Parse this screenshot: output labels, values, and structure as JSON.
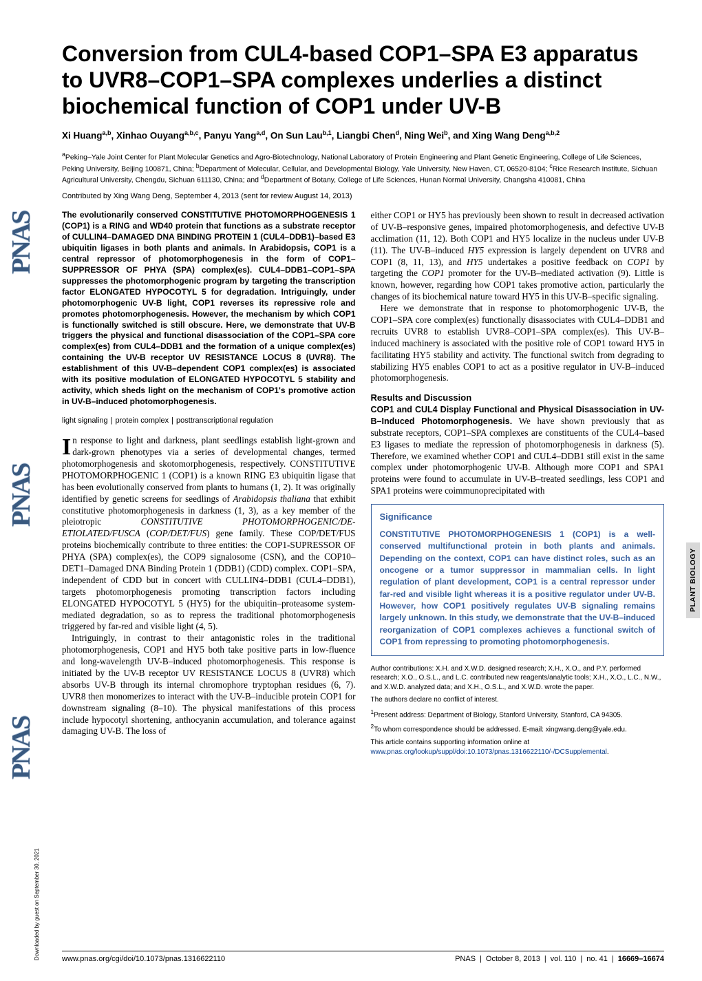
{
  "colors": {
    "text": "#000000",
    "link": "#0b3e8d",
    "significance_border": "#3a62a0",
    "significance_text": "#3a62a0",
    "pnas_fill": "#39597f",
    "pnas_bg_stripe": "#c3d2e3",
    "tab_bg": "#d8d8d8"
  },
  "fonts": {
    "title_pt": 32,
    "author_pt": 13.5,
    "affil_pt": 10.5,
    "abstract_pt": 12,
    "body_pt": 13.2,
    "footnote_pt": 10,
    "footer_pt": 11
  },
  "side_logo_text": "PNAS",
  "title": "Conversion from CUL4-based COP1–SPA E3 apparatus to UVR8–COP1–SPA complexes underlies a distinct biochemical function of COP1 under UV-B",
  "authors_html": "Xi Huang<sup>a,b</sup>, Xinhao Ouyang<sup>a,b,c</sup>, Panyu Yang<sup>a,d</sup>, On Sun Lau<sup>b,1</sup>, Liangbi Chen<sup>d</sup>, Ning Wei<sup>b</sup>, and Xing Wang Deng<sup>a,b,2</sup>",
  "affiliations": "<sup>a</sup>Peking–Yale Joint Center for Plant Molecular Genetics and Agro-Biotechnology, National Laboratory of Protein Engineering and Plant Genetic Engineering, College of Life Sciences, Peking University, Beijing 100871, China; <sup>b</sup>Department of Molecular, Cellular, and Developmental Biology, Yale University, New Haven, CT, 06520-8104; <sup>c</sup>Rice Research Institute, Sichuan Agricultural University, Chengdu, Sichuan 611130, China; and <sup>d</sup>Department of Botany, College of Life Sciences, Hunan Normal University, Changsha 410081, China",
  "contributed": "Contributed by Xing Wang Deng, September 4, 2013 (sent for review August 14, 2013)",
  "abstract": "The evolutionarily conserved CONSTITUTIVE PHOTOMORPHOGENESIS 1 (COP1) is a RING and WD40 protein that functions as a substrate receptor of CULLIN4–DAMAGED DNA BINDING PROTEIN 1 (CUL4–DDB1)–based E3 ubiquitin ligases in both plants and animals. In Arabidopsis, COP1 is a central repressor of photomorphogenesis in the form of COP1–SUPPRESSOR OF PHYA (SPA) complex(es). CUL4–DDB1–COP1–SPA suppresses the photomorphogenic program by targeting the transcription factor ELONGATED HYPOCOTYL 5 for degradation. Intriguingly, under photomorphogenic UV-B light, COP1 reverses its repressive role and promotes photomorphogenesis. However, the mechanism by which COP1 is functionally switched is still obscure. Here, we demonstrate that UV-B triggers the physical and functional disassociation of the COP1–SPA core complex(es) from CUL4–DDB1 and the formation of a unique complex(es) containing the UV-B receptor UV RESISTANCE LOCUS 8 (UVR8). The establishment of this UV-B–dependent COP1 complex(es) is associated with its positive modulation of ELONGATED HYPOCOTYL 5 stability and activity, which sheds light on the mechanism of COP1's promotive action in UV-B–induced photomorphogenesis.",
  "keywords": [
    "light signaling",
    "protein complex",
    "posttranscriptional regulation"
  ],
  "dropcap": "I",
  "intro_first": "n response to light and darkness, plant seedlings establish light-grown and dark-grown phenotypes via a series of developmental changes, termed photomorphogenesis and skotomorphogenesis, respectively. CONSTITUTIVE PHOTOMORPHOGENIC 1 (COP1) is a known RING E3 ubiquitin ligase that has been evolutionally conserved from plants to humans (1, 2). It was originally identified by genetic screens for seedlings of Arabidopsis thaliana that exhibit constitutive photomorphogenesis in darkness (1, 3), as a key member of the pleiotropic CONSTITUTIVE PHOTOMORPHOGENIC/DE-ETIOLATED/FUSCA (COP/DET/FUS) gene family. These COP/DET/FUS proteins biochemically contribute to three entities: the COP1-SUPRESSOR OF PHYA (SPA) complex(es), the COP9 signalosome (CSN), and the COP10–DET1–Damaged DNA Binding Protein 1 (DDB1) (CDD) complex. COP1–SPA, independent of CDD but in concert with CULLIN4–DDB1 (CUL4–DDB1), targets photomorphogenesis promoting transcription factors including ELONGATED HYPOCOTYL 5 (HY5) for the ubiquitin–proteasome system-mediated degradation, so as to repress the traditional photomorphogenesis triggered by far-red and visible light (4, 5).",
  "intro_p2": "Intriguingly, in contrast to their antagonistic roles in the traditional photomorphogenesis, COP1 and HY5 both take positive parts in low-fluence and long-wavelength UV-B–induced photomorphogenesis. This response is initiated by the UV-B receptor UV RESISTANCE LOCUS 8 (UVR8) which absorbs UV-B through its internal chromophore tryptophan residues (6, 7). UVR8 then monomerizes to interact with the UV-B–inducible protein COP1 for downstream signaling (8–10). The physical manifestations of this process include hypocotyl shortening, anthocyanin accumulation, and tolerance against damaging UV-B. The loss of",
  "col2_p1": "either COP1 or HY5 has previously been shown to result in decreased activation of UV-B–responsive genes, impaired photomorphogenesis, and defective UV-B acclimation (11, 12). Both COP1 and HY5 localize in the nucleus under UV-B (11). The UV-B–induced HY5 expression is largely dependent on UVR8 and COP1 (8, 11, 13), and HY5 undertakes a positive feedback on COP1 by targeting the COP1 promoter for the UV-B–mediated activation (9). Little is known, however, regarding how COP1 takes promotive action, particularly the changes of its biochemical nature toward HY5 in this UV-B–specific signaling.",
  "col2_p2": "Here we demonstrate that in response to photomorphogenic UV-B, the COP1–SPA core complex(es) functionally disassociates with CUL4–DDB1 and recruits UVR8 to establish UVR8–COP1–SPA complex(es). This UV-B–induced machinery is associated with the positive role of COP1 toward HY5 in facilitating HY5 stability and activity. The functional switch from degrading to stabilizing HY5 enables COP1 to act as a positive regulator in UV-B–induced photomorphogenesis.",
  "results_heading": "Results and Discussion",
  "results_sub": "COP1 and CUL4 Display Functional and Physical Disassociation in UV-B–Induced Photomorphogenesis.",
  "results_body": " We have shown previously that as substrate receptors, COP1–SPA complexes are constituents of the CUL4–based E3 ligases to mediate the repression of photomorphogenesis in darkness (5). Therefore, we examined whether COP1 and CUL4–DDB1 still exist in the same complex under photomorphogenic UV-B. Although more COP1 and SPA1 proteins were found to accumulate in UV-B–treated seedlings, less COP1 and SPA1 proteins were coimmunoprecipitated with",
  "significance_heading": "Significance",
  "significance_body": "CONSTITUTIVE PHOTOMORPHOGENESIS 1 (COP1) is a well-conserved multifunctional protein in both plants and animals. Depending on the context, COP1 can have distinct roles, such as an oncogene or a tumor suppressor in mammalian cells. In light regulation of plant development, COP1 is a central repressor under far-red and visible light whereas it is a positive regulator under UV-B. However, how COP1 positively regulates UV-B signaling remains largely unknown. In this study, we demonstrate that the UV-B–induced reorganization of COP1 complexes achieves a functional switch of COP1 from repressing to promoting photomorphogenesis.",
  "footnotes": {
    "contrib": "Author contributions: X.H. and X.W.D. designed research; X.H., X.O., and P.Y. performed research; X.O., O.S.L., and L.C. contributed new reagents/analytic tools; X.H., X.O., L.C., N.W., and X.W.D. analyzed data; and X.H., O.S.L., and X.W.D. wrote the paper.",
    "coi": "The authors declare no conflict of interest.",
    "f1": "Present address: Department of Biology, Stanford University, Stanford, CA 94305.",
    "f2": "To whom correspondence should be addressed. E-mail: xingwang.deng@yale.edu.",
    "supp_pre": "This article contains supporting information online at ",
    "supp_link": "www.pnas.org/lookup/suppl/doi:10.1073/pnas.1316622110/-/DCSupplemental",
    "supp_post": "."
  },
  "footer": {
    "left": "www.pnas.org/cgi/doi/10.1073/pnas.1316622110",
    "journal": "PNAS",
    "date": "October 8, 2013",
    "vol": "vol. 110",
    "no": "no. 41",
    "pages": "16669–16674"
  },
  "vertical_tab": "PLANT BIOLOGY",
  "download_note": "Downloaded by guest on September 30, 2021"
}
